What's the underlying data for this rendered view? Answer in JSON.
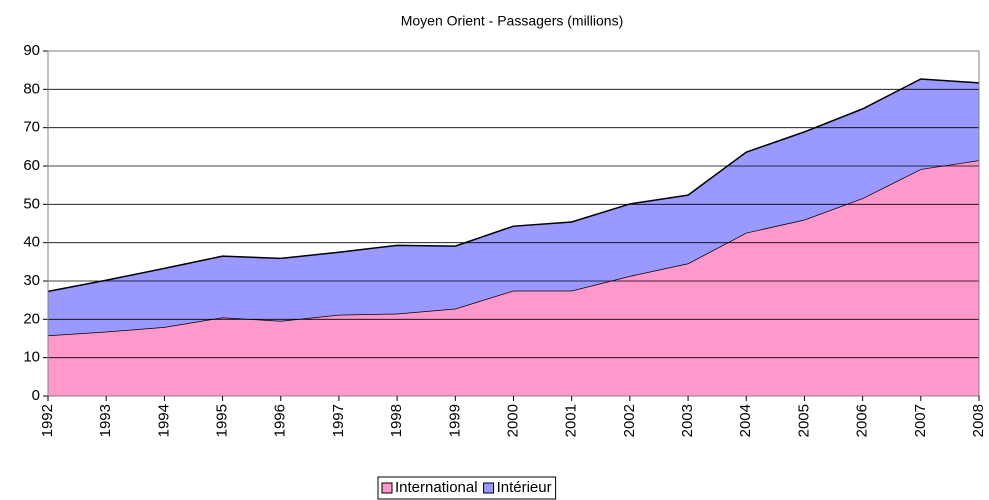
{
  "chart_data": {
    "type": "stacked_area",
    "title": "Moyen Orient - Passagers (millions)",
    "categories": [
      "1992",
      "1993",
      "1994",
      "1995",
      "1996",
      "1997",
      "1998",
      "1999",
      "2000",
      "2001",
      "2002",
      "2003",
      "2004",
      "2005",
      "2006",
      "2007",
      "2008"
    ],
    "series": [
      {
        "name": "International",
        "color": "#ff99cc",
        "values": [
          15.8,
          16.8,
          18,
          20.5,
          19.6,
          21.2,
          21.5,
          22.8,
          27.5,
          27.5,
          31.3,
          34.6,
          42.6,
          46,
          51.6,
          59.2,
          61.5
        ]
      },
      {
        "name": "Intérieur",
        "color": "#9999ff",
        "values": [
          11.5,
          13.4,
          15.3,
          16.0,
          16.3,
          16.3,
          17.8,
          16.3,
          16.8,
          17.9,
          18.8,
          17.8,
          21.0,
          22.9,
          23.3,
          23.5,
          20.2
        ]
      }
    ],
    "ylim": [
      0,
      90
    ],
    "yticks": [
      0,
      10,
      20,
      30,
      40,
      50,
      60,
      70,
      80,
      90
    ],
    "grid": true,
    "legend": "bottom"
  }
}
